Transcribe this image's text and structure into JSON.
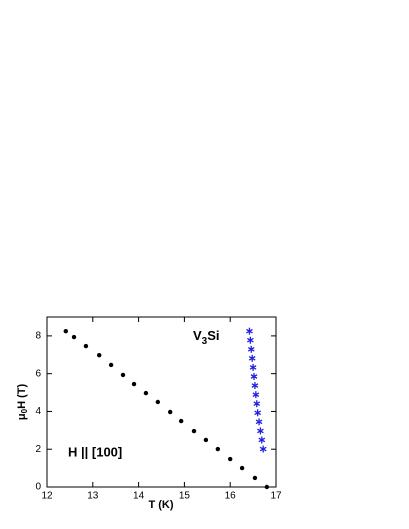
{
  "chart_data": {
    "type": "scatter",
    "xlabel": "T (K)",
    "ylabel": {
      "main": "μ",
      "sub": "0",
      "rest": "H (T)"
    },
    "annotations": [
      {
        "main": "V",
        "sub": "3",
        "rest": "Si"
      },
      {
        "main": "H || [100]"
      }
    ],
    "xlim": [
      12,
      17
    ],
    "xticks": [
      12,
      13,
      14,
      15,
      16,
      17
    ],
    "ylim": [
      0,
      9
    ],
    "yticks": [
      0,
      2,
      4,
      6,
      8
    ],
    "series": [
      {
        "color": "#000000",
        "marker": "circle",
        "x": [
          12.41,
          12.59,
          12.85,
          13.14,
          13.4,
          13.66,
          13.9,
          14.16,
          14.42,
          14.69,
          14.93,
          15.21,
          15.47,
          15.73,
          16.0,
          16.26,
          16.54,
          16.8
        ],
        "values": [
          8.25,
          7.94,
          7.46,
          6.98,
          6.46,
          5.93,
          5.45,
          4.97,
          4.5,
          3.97,
          3.49,
          2.96,
          2.49,
          2.01,
          1.48,
          1.0,
          0.48,
          0
        ]
      },
      {
        "color": "#1f1fe0",
        "marker": "star",
        "x": [
          16.42,
          16.44,
          16.46,
          16.48,
          16.5,
          16.52,
          16.54,
          16.56,
          16.58,
          16.6,
          16.63,
          16.66,
          16.69,
          16.72
        ],
        "values": [
          8.25,
          7.77,
          7.29,
          6.81,
          6.33,
          5.85,
          5.37,
          4.89,
          4.41,
          3.93,
          3.45,
          2.97,
          2.49,
          2.01
        ]
      }
    ]
  }
}
